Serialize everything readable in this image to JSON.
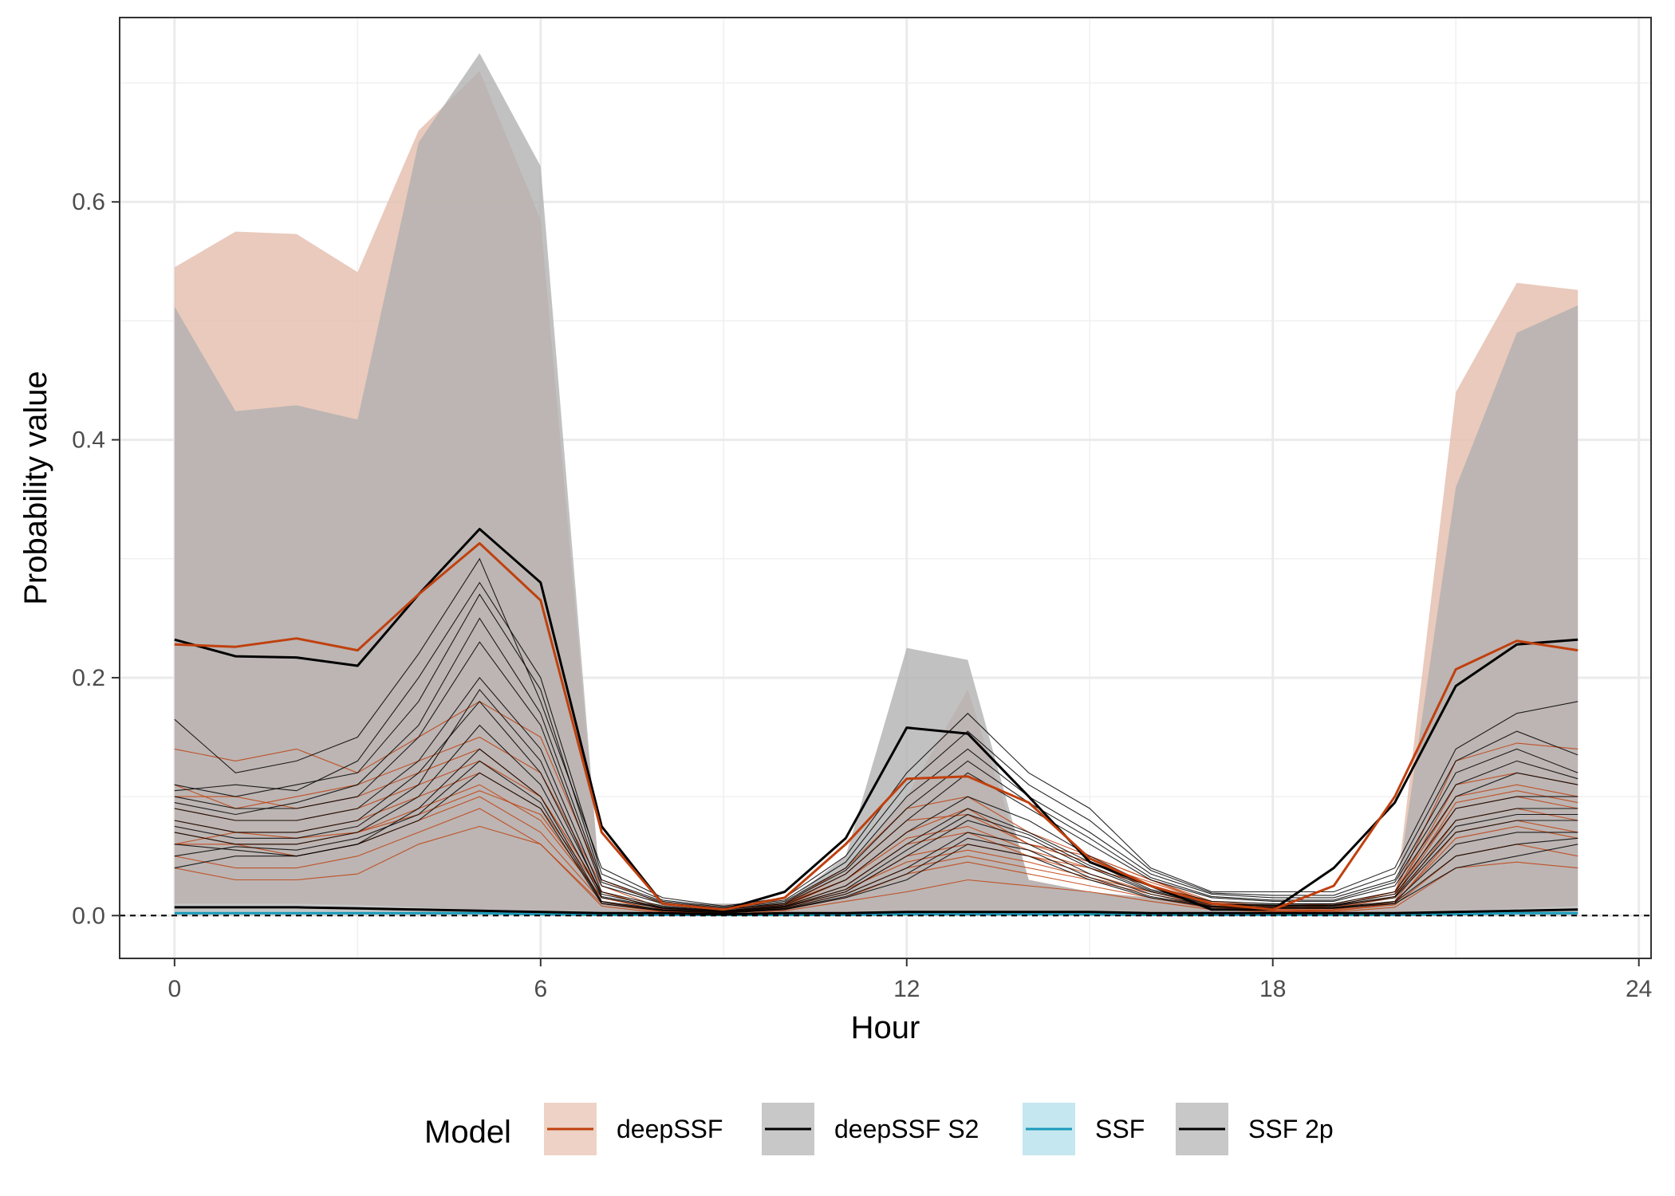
{
  "chart_data": {
    "type": "line",
    "title": "",
    "xlabel": "Hour",
    "ylabel": "Probability value",
    "xlim": [
      -0.9,
      24.2
    ],
    "ylim": [
      -0.036,
      0.755
    ],
    "x_ticks": [
      0,
      6,
      12,
      18,
      24
    ],
    "x_tick_labels": [
      "0",
      "6",
      "12",
      "18",
      "24"
    ],
    "y_ticks": [
      0.0,
      0.2,
      0.4,
      0.6
    ],
    "y_tick_labels": [
      "0.0",
      "0.2",
      "0.4",
      "0.6"
    ],
    "grid": true,
    "reference_line": {
      "y": 0,
      "style": "dashed"
    },
    "x": [
      0,
      1,
      2,
      3,
      4,
      5,
      6,
      7,
      8,
      9,
      10,
      11,
      12,
      13,
      14,
      15,
      16,
      17,
      18,
      19,
      20,
      21,
      22,
      23
    ],
    "legend": {
      "position": "bottom",
      "title": "Model",
      "entries": [
        {
          "label": "deepSSF",
          "fill": "#eed2c6",
          "line": "#c0400e"
        },
        {
          "label": "deepSSF S2",
          "fill": "#c8c8c8",
          "line": "#000000"
        },
        {
          "label": "SSF",
          "fill": "#c5e7ef",
          "line": "#1a9bbb"
        },
        {
          "label": "SSF 2p",
          "fill": "#c8c8c8",
          "line": "#000000"
        }
      ]
    },
    "series": [
      {
        "name": "deepSSF",
        "color": "#c0400e",
        "band_fill": "#e5c1b1",
        "band_upper": [
          0.545,
          0.575,
          0.573,
          0.541,
          0.66,
          0.71,
          0.585,
          0.01,
          0.01,
          0.01,
          0.01,
          0.04,
          0.1,
          0.19,
          0.03,
          0.02,
          0.015,
          0.01,
          0.01,
          0.01,
          0.01,
          0.44,
          0.532,
          0.526
        ],
        "band_lower": [
          0,
          0,
          0,
          0,
          0,
          0,
          0,
          0,
          0,
          0,
          0,
          0,
          0,
          0,
          0,
          0,
          0,
          0,
          0,
          0,
          0,
          0,
          0,
          0
        ],
        "mean": [
          0.228,
          0.226,
          0.233,
          0.223,
          0.27,
          0.313,
          0.265,
          0.07,
          0.01,
          0.005,
          0.015,
          0.06,
          0.115,
          0.117,
          0.095,
          0.048,
          0.025,
          0.01,
          0.005,
          0.025,
          0.1,
          0.207,
          0.231,
          0.223
        ],
        "individuals": [
          [
            0.14,
            0.13,
            0.14,
            0.12,
            0.15,
            0.18,
            0.15,
            0.03,
            0.01,
            0.005,
            0.01,
            0.04,
            0.09,
            0.1,
            0.07,
            0.05,
            0.03,
            0.012,
            0.008,
            0.01,
            0.02,
            0.13,
            0.145,
            0.14
          ],
          [
            0.1,
            0.1,
            0.09,
            0.1,
            0.12,
            0.14,
            0.1,
            0.02,
            0.005,
            0.003,
            0.01,
            0.03,
            0.07,
            0.09,
            0.06,
            0.05,
            0.03,
            0.01,
            0.006,
            0.008,
            0.02,
            0.1,
            0.11,
            0.1
          ],
          [
            0.08,
            0.07,
            0.07,
            0.08,
            0.1,
            0.12,
            0.09,
            0.02,
            0.005,
            0.003,
            0.008,
            0.025,
            0.06,
            0.07,
            0.05,
            0.04,
            0.025,
            0.01,
            0.005,
            0.006,
            0.015,
            0.09,
            0.1,
            0.09
          ],
          [
            0.07,
            0.06,
            0.06,
            0.07,
            0.09,
            0.11,
            0.08,
            0.015,
            0.004,
            0.002,
            0.007,
            0.02,
            0.05,
            0.06,
            0.05,
            0.035,
            0.02,
            0.008,
            0.004,
            0.005,
            0.012,
            0.08,
            0.09,
            0.08
          ],
          [
            0.06,
            0.06,
            0.05,
            0.06,
            0.08,
            0.1,
            0.07,
            0.012,
            0.003,
            0.002,
            0.006,
            0.018,
            0.04,
            0.05,
            0.04,
            0.03,
            0.018,
            0.007,
            0.004,
            0.004,
            0.01,
            0.07,
            0.08,
            0.07
          ],
          [
            0.05,
            0.04,
            0.04,
            0.05,
            0.07,
            0.09,
            0.06,
            0.01,
            0.003,
            0.002,
            0.005,
            0.015,
            0.035,
            0.045,
            0.035,
            0.025,
            0.015,
            0.006,
            0.003,
            0.004,
            0.009,
            0.05,
            0.06,
            0.05
          ],
          [
            0.04,
            0.03,
            0.03,
            0.035,
            0.06,
            0.075,
            0.06,
            0.008,
            0.002,
            0.001,
            0.004,
            0.012,
            0.02,
            0.03,
            0.025,
            0.02,
            0.012,
            0.005,
            0.003,
            0.003,
            0.007,
            0.04,
            0.045,
            0.04
          ],
          [
            0.11,
            0.09,
            0.1,
            0.11,
            0.13,
            0.15,
            0.12,
            0.025,
            0.006,
            0.004,
            0.009,
            0.035,
            0.08,
            0.085,
            0.06,
            0.045,
            0.028,
            0.011,
            0.007,
            0.009,
            0.018,
            0.11,
            0.12,
            0.11
          ],
          [
            0.09,
            0.08,
            0.08,
            0.09,
            0.11,
            0.13,
            0.1,
            0.02,
            0.005,
            0.003,
            0.008,
            0.03,
            0.065,
            0.075,
            0.055,
            0.04,
            0.025,
            0.01,
            0.006,
            0.007,
            0.016,
            0.095,
            0.105,
            0.095
          ],
          [
            0.06,
            0.07,
            0.065,
            0.07,
            0.085,
            0.105,
            0.085,
            0.015,
            0.004,
            0.002,
            0.007,
            0.022,
            0.045,
            0.055,
            0.045,
            0.032,
            0.02,
            0.008,
            0.004,
            0.005,
            0.011,
            0.065,
            0.075,
            0.065
          ]
        ]
      },
      {
        "name": "deepSSF S2",
        "color": "#000000",
        "band_fill": "#b0b0b0",
        "band_upper": [
          0.512,
          0.424,
          0.429,
          0.417,
          0.65,
          0.725,
          0.63,
          0.01,
          0.01,
          0.01,
          0.01,
          0.05,
          0.225,
          0.215,
          0.03,
          0.02,
          0.015,
          0.01,
          0.01,
          0.01,
          0.01,
          0.36,
          0.49,
          0.513
        ],
        "band_lower": [
          0,
          0,
          0,
          0,
          0,
          0,
          0,
          0,
          0,
          0,
          0,
          0,
          0,
          0,
          0,
          0,
          0,
          0,
          0,
          0,
          0,
          0,
          0,
          0
        ],
        "mean": [
          0.232,
          0.218,
          0.217,
          0.21,
          0.27,
          0.325,
          0.28,
          0.075,
          0.01,
          0.005,
          0.02,
          0.065,
          0.158,
          0.153,
          0.1,
          0.045,
          0.025,
          0.005,
          0.005,
          0.04,
          0.095,
          0.193,
          0.228,
          0.232
        ],
        "individuals": [
          [
            0.165,
            0.12,
            0.13,
            0.15,
            0.22,
            0.3,
            0.18,
            0.04,
            0.015,
            0.008,
            0.015,
            0.05,
            0.12,
            0.17,
            0.12,
            0.09,
            0.04,
            0.02,
            0.02,
            0.02,
            0.04,
            0.14,
            0.17,
            0.18
          ],
          [
            0.11,
            0.1,
            0.11,
            0.12,
            0.18,
            0.27,
            0.19,
            0.03,
            0.012,
            0.006,
            0.012,
            0.04,
            0.1,
            0.14,
            0.1,
            0.07,
            0.035,
            0.018,
            0.015,
            0.015,
            0.03,
            0.12,
            0.14,
            0.12
          ],
          [
            0.1,
            0.09,
            0.09,
            0.1,
            0.15,
            0.23,
            0.16,
            0.025,
            0.01,
            0.005,
            0.01,
            0.035,
            0.08,
            0.12,
            0.09,
            0.06,
            0.03,
            0.015,
            0.012,
            0.012,
            0.025,
            0.1,
            0.12,
            0.11
          ],
          [
            0.09,
            0.08,
            0.08,
            0.09,
            0.13,
            0.2,
            0.14,
            0.02,
            0.008,
            0.004,
            0.009,
            0.03,
            0.07,
            0.1,
            0.08,
            0.05,
            0.025,
            0.012,
            0.01,
            0.01,
            0.02,
            0.09,
            0.1,
            0.1
          ],
          [
            0.08,
            0.07,
            0.07,
            0.08,
            0.12,
            0.18,
            0.12,
            0.018,
            0.007,
            0.004,
            0.008,
            0.025,
            0.06,
            0.09,
            0.07,
            0.045,
            0.022,
            0.01,
            0.009,
            0.009,
            0.018,
            0.08,
            0.09,
            0.09
          ],
          [
            0.07,
            0.06,
            0.06,
            0.07,
            0.1,
            0.16,
            0.11,
            0.015,
            0.006,
            0.003,
            0.007,
            0.02,
            0.05,
            0.08,
            0.065,
            0.04,
            0.02,
            0.009,
            0.008,
            0.008,
            0.015,
            0.07,
            0.08,
            0.08
          ],
          [
            0.06,
            0.055,
            0.05,
            0.06,
            0.09,
            0.14,
            0.1,
            0.012,
            0.005,
            0.003,
            0.006,
            0.018,
            0.04,
            0.07,
            0.06,
            0.035,
            0.018,
            0.008,
            0.007,
            0.007,
            0.012,
            0.06,
            0.07,
            0.07
          ],
          [
            0.04,
            0.05,
            0.05,
            0.06,
            0.08,
            0.12,
            0.09,
            0.01,
            0.004,
            0.002,
            0.005,
            0.015,
            0.03,
            0.06,
            0.05,
            0.03,
            0.015,
            0.007,
            0.006,
            0.006,
            0.01,
            0.04,
            0.05,
            0.06
          ],
          [
            0.105,
            0.11,
            0.105,
            0.13,
            0.2,
            0.28,
            0.2,
            0.035,
            0.013,
            0.007,
            0.013,
            0.045,
            0.11,
            0.155,
            0.11,
            0.08,
            0.038,
            0.019,
            0.017,
            0.017,
            0.035,
            0.13,
            0.155,
            0.135
          ],
          [
            0.095,
            0.085,
            0.095,
            0.11,
            0.16,
            0.25,
            0.17,
            0.028,
            0.011,
            0.005,
            0.011,
            0.038,
            0.09,
            0.13,
            0.095,
            0.065,
            0.032,
            0.016,
            0.013,
            0.013,
            0.028,
            0.11,
            0.13,
            0.115
          ],
          [
            0.075,
            0.065,
            0.065,
            0.075,
            0.11,
            0.19,
            0.13,
            0.016,
            0.0065,
            0.0035,
            0.0075,
            0.022,
            0.055,
            0.085,
            0.068,
            0.042,
            0.021,
            0.0095,
            0.0085,
            0.0085,
            0.016,
            0.075,
            0.085,
            0.085
          ],
          [
            0.05,
            0.058,
            0.055,
            0.065,
            0.085,
            0.13,
            0.095,
            0.011,
            0.0045,
            0.0025,
            0.0055,
            0.016,
            0.035,
            0.065,
            0.055,
            0.032,
            0.016,
            0.0075,
            0.0065,
            0.0065,
            0.011,
            0.05,
            0.06,
            0.065
          ]
        ]
      },
      {
        "name": "SSF",
        "color": "#1a9bbb",
        "band_fill": "#c5e7ef",
        "band_upper": [
          0.004,
          0.004,
          0.004,
          0.004,
          0.003,
          0.003,
          0.002,
          0.001,
          0.001,
          0.001,
          0.001,
          0.001,
          0.002,
          0.002,
          0.002,
          0.002,
          0.001,
          0.001,
          0.001,
          0.001,
          0.001,
          0.002,
          0.003,
          0.004
        ],
        "band_lower": [
          0,
          0,
          0,
          0,
          0,
          0,
          0,
          0,
          0,
          0,
          0,
          0,
          0,
          0,
          0,
          0,
          0,
          0,
          0,
          0,
          0,
          0,
          0,
          0
        ],
        "mean": [
          0.002,
          0.002,
          0.002,
          0.002,
          0.002,
          0.002,
          0.001,
          0.0005,
          0.0005,
          0.0005,
          0.0005,
          0.0005,
          0.001,
          0.001,
          0.001,
          0.001,
          0.0005,
          0.0005,
          0.0005,
          0.0005,
          0.0005,
          0.001,
          0.002,
          0.002
        ]
      },
      {
        "name": "SSF 2p",
        "color": "#000000",
        "band_fill": "#c8c8c8",
        "band_upper": [
          0.01,
          0.01,
          0.01,
          0.009,
          0.007,
          0.005,
          0.004,
          0.003,
          0.003,
          0.002,
          0.003,
          0.003,
          0.004,
          0.004,
          0.004,
          0.004,
          0.003,
          0.003,
          0.003,
          0.003,
          0.003,
          0.004,
          0.006,
          0.008
        ],
        "band_lower": [
          0,
          0,
          0,
          0,
          0,
          0,
          0,
          0,
          0,
          0,
          0,
          0,
          0,
          0,
          0,
          0,
          0,
          0,
          0,
          0,
          0,
          0,
          0,
          0
        ],
        "mean": [
          0.007,
          0.007,
          0.007,
          0.006,
          0.005,
          0.004,
          0.003,
          0.002,
          0.002,
          0.001,
          0.002,
          0.002,
          0.003,
          0.003,
          0.003,
          0.003,
          0.002,
          0.002,
          0.002,
          0.002,
          0.002,
          0.003,
          0.004,
          0.005
        ]
      }
    ]
  }
}
